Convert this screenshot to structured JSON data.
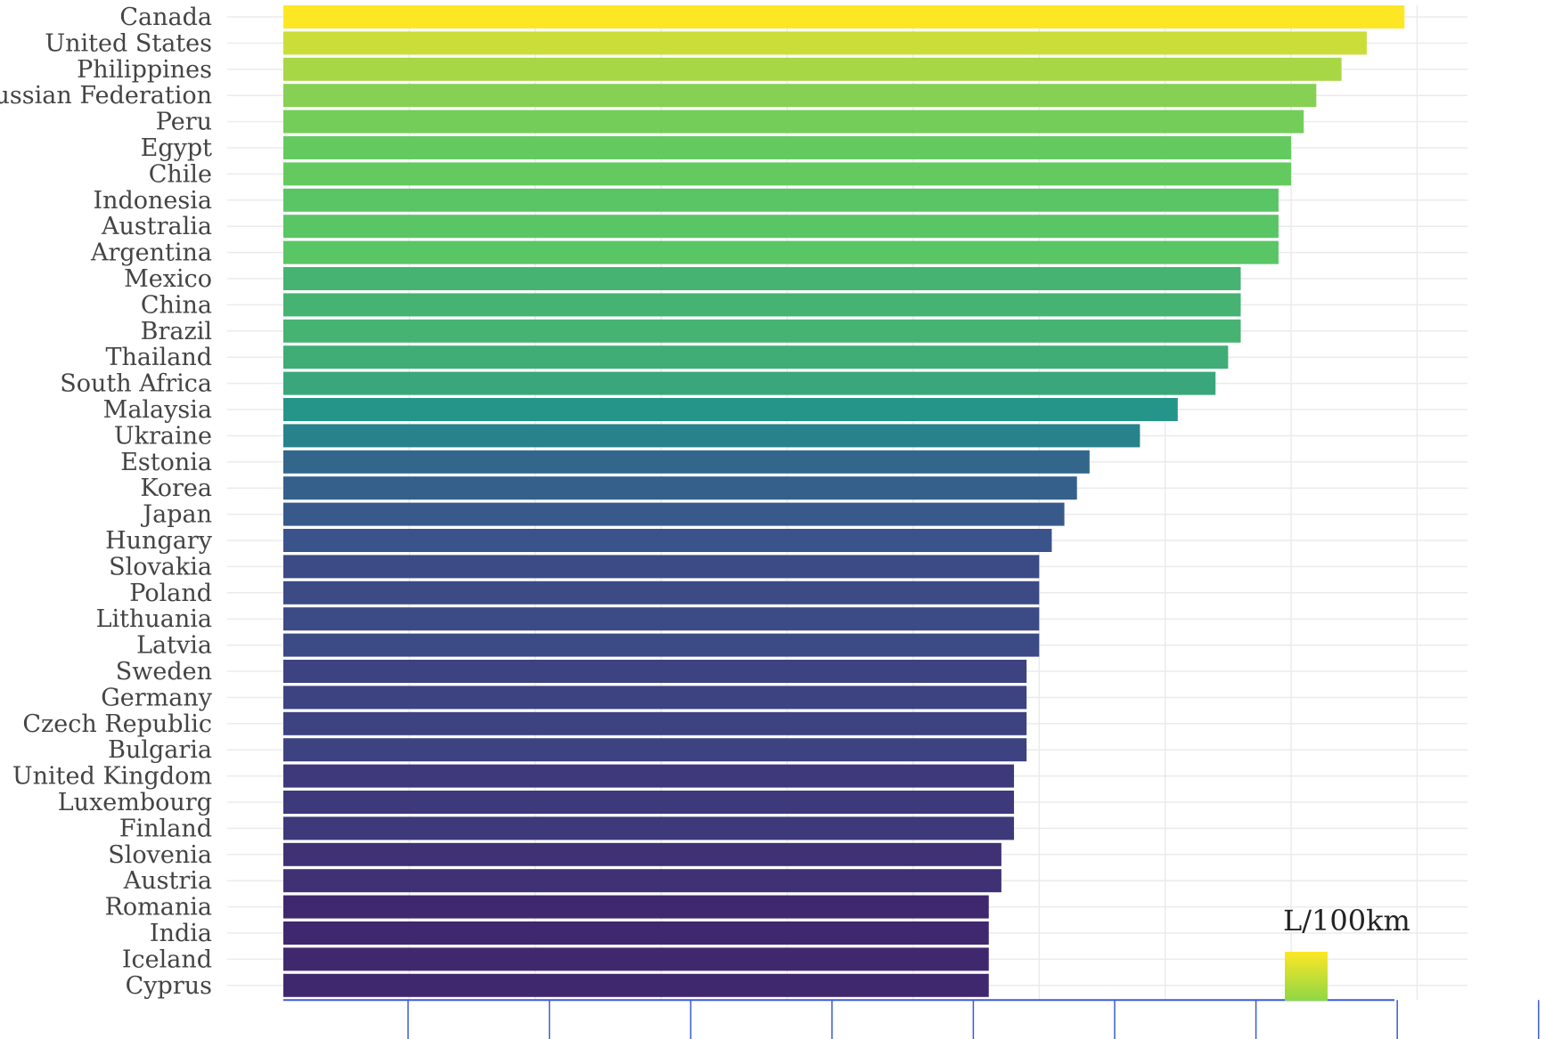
{
  "chart_data": {
    "type": "bar",
    "orientation": "horizontal",
    "categories": [
      "Canada",
      "United States",
      "Philippines",
      "Russian Federation",
      "Peru",
      "Egypt",
      "Chile",
      "Indonesia",
      "Australia",
      "Argentina",
      "Mexico",
      "China",
      "Brazil",
      "Thailand",
      "South Africa",
      "Malaysia",
      "Ukraine",
      "Estonia",
      "Korea",
      "Japan",
      "Hungary",
      "Slovakia",
      "Poland",
      "Lithuania",
      "Latvia",
      "Sweden",
      "Germany",
      "Czech Republic",
      "Bulgaria",
      "United Kingdom",
      "Luxembourg",
      "Finland",
      "Slovenia",
      "Austria",
      "Romania",
      "India",
      "Iceland",
      "Cyprus"
    ],
    "values": [
      8.9,
      8.6,
      8.4,
      8.2,
      8.1,
      8.0,
      8.0,
      7.9,
      7.9,
      7.9,
      7.6,
      7.6,
      7.6,
      7.5,
      7.4,
      7.1,
      6.8,
      6.4,
      6.3,
      6.2,
      6.1,
      6.0,
      6.0,
      6.0,
      6.0,
      5.9,
      5.9,
      5.9,
      5.9,
      5.8,
      5.8,
      5.8,
      5.7,
      5.7,
      5.6,
      5.6,
      5.6,
      5.6
    ],
    "xlim": [
      0,
      9.4
    ],
    "legend": {
      "title": "L/100km",
      "position": "bottom-right",
      "colormap": "viridis"
    },
    "grid": true,
    "title": "",
    "xlabel": "",
    "ylabel": ""
  }
}
